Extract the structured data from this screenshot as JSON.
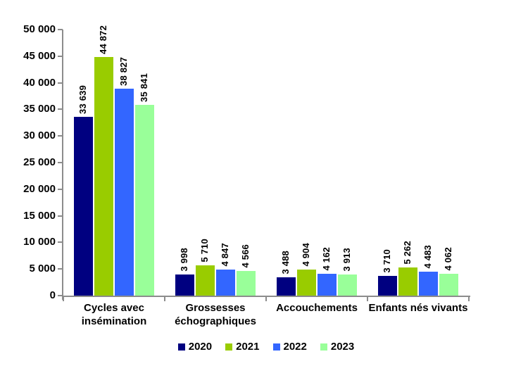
{
  "chart_data": {
    "type": "bar",
    "title": "",
    "categories": [
      "Cycles avec insémination",
      "Grossesses échographiques",
      "Accouchements",
      "Enfants nés vivants"
    ],
    "series": [
      {
        "name": "2020",
        "color": "#000080",
        "values": [
          33639,
          3998,
          3488,
          3710
        ],
        "value_labels": [
          "33 639",
          "3 998",
          "3 488",
          "3 710"
        ]
      },
      {
        "name": "2021",
        "color": "#99CC00",
        "values": [
          44872,
          5710,
          4904,
          5262
        ],
        "value_labels": [
          "44 872",
          "5 710",
          "4 904",
          "5 262"
        ]
      },
      {
        "name": "2022",
        "color": "#3366FF",
        "values": [
          38827,
          4847,
          4162,
          4483
        ],
        "value_labels": [
          "38 827",
          "4 847",
          "4 162",
          "4 483"
        ]
      },
      {
        "name": "2023",
        "color": "#99FF99",
        "values": [
          35841,
          4566,
          3913,
          4062
        ],
        "value_labels": [
          "35 841",
          "4 566",
          "3 913",
          "4 062"
        ]
      }
    ],
    "ylim": [
      0,
      50000
    ],
    "ytick_step": 5000,
    "ytick_labels": [
      "0",
      "5 000",
      "10 000",
      "15 000",
      "20 000",
      "25 000",
      "30 000",
      "35 000",
      "40 000",
      "45 000",
      "50 000"
    ],
    "legend": {
      "position": "bottom",
      "entries": [
        "2020",
        "2021",
        "2022",
        "2023"
      ]
    },
    "grid": false,
    "axis_color": "#8C8C8C",
    "value_label_rotation": 90
  }
}
